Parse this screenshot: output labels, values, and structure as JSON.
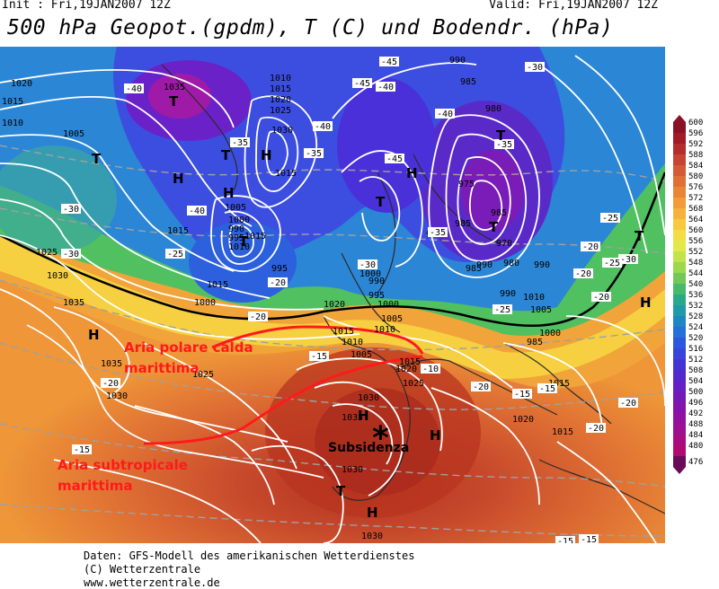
{
  "header": {
    "init": "Init : Fri,19JAN2007  12Z",
    "valid": "Valid: Fri,19JAN2007  12Z",
    "title": "500 hPa Geopot.(gpdm), T (C) und Bodendr. (hPa)"
  },
  "annotations": {
    "polar": "Aria polare calda marittima",
    "polar_line1": "Aria polare calda",
    "polar_line2": "marittima",
    "subtropical_line1": "Aria subtropicale",
    "subtropical_line2": "marittima",
    "subsidence": "Subsidenza",
    "star": "*"
  },
  "colors": {
    "annotation_red": "#ff1a1a",
    "isobar": "#ffffff",
    "isotherm_dash": "#a0a0a0",
    "coastline": "#2a2a2a"
  },
  "legend": {
    "values": [
      "600",
      "596",
      "592",
      "588",
      "584",
      "580",
      "576",
      "572",
      "568",
      "564",
      "560",
      "556",
      "552",
      "548",
      "544",
      "540",
      "536",
      "532",
      "528",
      "524",
      "520",
      "516",
      "512",
      "508",
      "504",
      "500",
      "496",
      "492",
      "488",
      "484",
      "480",
      "476"
    ],
    "colors": [
      "#8b1226",
      "#a01a2a",
      "#b52c2c",
      "#c64432",
      "#d45a35",
      "#e06e36",
      "#ea8536",
      "#f29b38",
      "#f6b23c",
      "#f7c840",
      "#f4dc44",
      "#e4e84a",
      "#c2e34c",
      "#9cd74e",
      "#72c857",
      "#46b96a",
      "#2aa98a",
      "#1f9aaa",
      "#1f86c4",
      "#2470d8",
      "#2c58e0",
      "#3844dc",
      "#4434d6",
      "#5428ce",
      "#6420c4",
      "#7418b8",
      "#8412ac",
      "#92109e",
      "#9e0e90",
      "#a80c80",
      "#b00a70",
      "#6a0a5a"
    ]
  },
  "map_labels": {
    "pressure_values": [
      "1020",
      "1015",
      "1010",
      "1005",
      "1035",
      "1010",
      "1015",
      "1020",
      "1025",
      "1030",
      "1005",
      "1000",
      "990",
      "995",
      "1010",
      "1015",
      "1000",
      "995",
      "990",
      "985",
      "985",
      "990",
      "985",
      "980",
      "975",
      "970",
      "985",
      "990",
      "980",
      "1015",
      "1025",
      "1030",
      "1035",
      "1020",
      "1015",
      "1010",
      "1005",
      "1000",
      "990",
      "995",
      "1000",
      "1005",
      "1010",
      "1015",
      "1020",
      "1025",
      "1030",
      "1035",
      "1030",
      "1030",
      "1020",
      "1015",
      "1015",
      "1025",
      "1030",
      "1035",
      "1010",
      "1005",
      "990",
      "1000",
      "985",
      "990",
      "1015",
      "1015"
    ],
    "temp_values": [
      "-40",
      "-35",
      "-40",
      "-30",
      "-35",
      "-40",
      "-45",
      "-45",
      "-40",
      "-35",
      "-30",
      "-35",
      "-40",
      "-45",
      "-25",
      "-20",
      "-30",
      "-20",
      "-25",
      "-30",
      "-25",
      "-20",
      "-15",
      "-20",
      "-15",
      "-20",
      "-15",
      "-10",
      "-20",
      "-15",
      "-15",
      "-20",
      "-15",
      "-20",
      "-20",
      "-25",
      "-30"
    ],
    "highs": [
      "H",
      "H",
      "H",
      "H",
      "H",
      "H",
      "H",
      "H",
      "H"
    ],
    "lows": [
      "T",
      "T",
      "T",
      "T",
      "T",
      "T",
      "T",
      "T",
      "T"
    ]
  },
  "footer": {
    "line1": "Daten: GFS-Modell des amerikanischen Wetterdienstes",
    "line2": "(C) Wetterzentrale",
    "line3": "www.wetterzentrale.de"
  }
}
